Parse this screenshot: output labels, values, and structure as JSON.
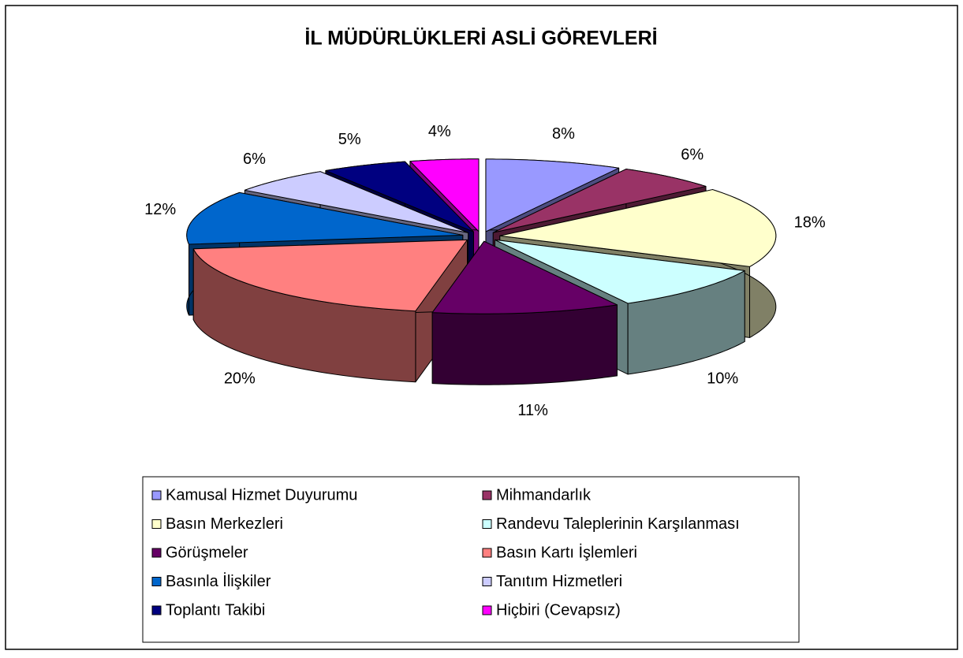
{
  "chart_data": {
    "type": "pie3d",
    "title": "İL MÜDÜRLÜKLERİ ASLİ GÖREVLERİ",
    "categories": [
      "Kamusal Hizmet Duyurumu",
      "Mihmandarlık",
      "Basın Merkezleri",
      "Randevu Taleplerinin Karşılanması",
      "Görüşmeler",
      "Basın Kartı İşlemleri",
      "Basınla İlişkiler",
      "Tanıtım Hizmetleri",
      "Toplantı Takibi",
      "Hiçbiri (Cevapsız)"
    ],
    "values": [
      8,
      6,
      18,
      10,
      11,
      20,
      12,
      6,
      5,
      4
    ],
    "value_labels": [
      "8%",
      "6%",
      "18%",
      "10%",
      "11%",
      "20%",
      "12%",
      "6%",
      "5%",
      "4%"
    ],
    "colors": [
      "#9999FF",
      "#993366",
      "#FFFFCC",
      "#CCFFFF",
      "#660066",
      "#FF8080",
      "#0066CC",
      "#CCCCFF",
      "#000080",
      "#FF00FF"
    ]
  }
}
